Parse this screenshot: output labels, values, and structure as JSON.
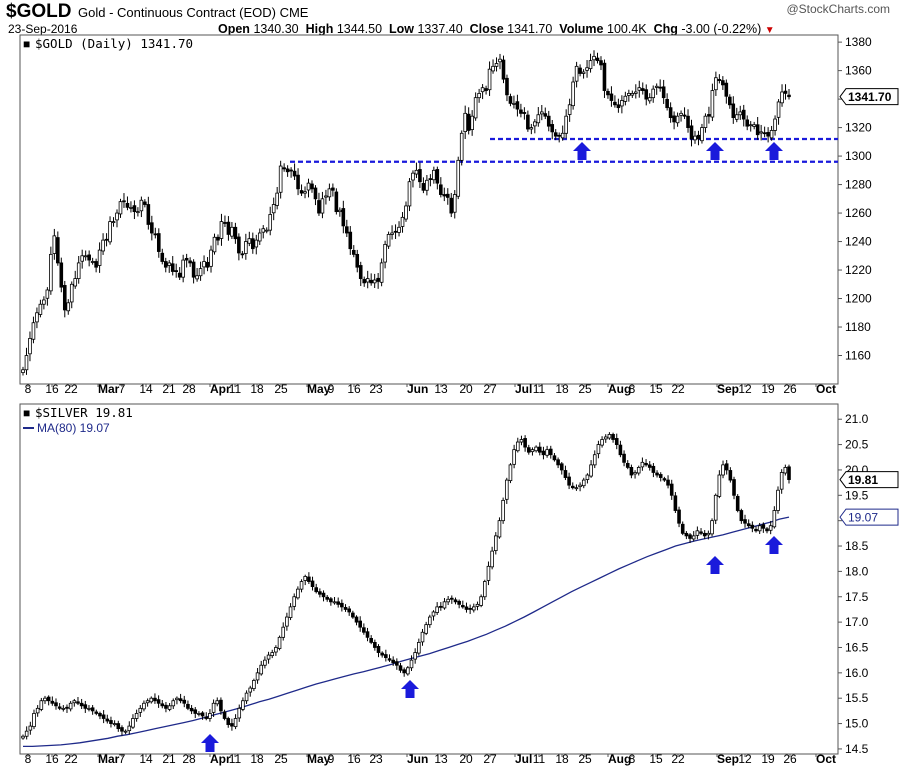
{
  "header": {
    "symbol": "$GOLD",
    "description": "Gold - Continuous Contract (EOD)",
    "exchange": "CME",
    "date": "23-Sep-2016",
    "open_label": "Open",
    "open": "1340.30",
    "high_label": "High",
    "high": "1344.50",
    "low_label": "Low",
    "low": "1337.40",
    "close_label": "Close",
    "close": "1341.70",
    "volume_label": "Volume",
    "volume": "100.4K",
    "chg_label": "Chg",
    "chg": "-3.00 (-0.22%)",
    "logo": "@StockCharts.com"
  },
  "chart_data": [
    {
      "type": "candlestick",
      "title": "$GOLD (Daily) 1341.70",
      "last_value": "1341.70",
      "ylim": [
        1140,
        1385
      ],
      "yticks": [
        1160,
        1180,
        1200,
        1220,
        1240,
        1260,
        1280,
        1300,
        1320,
        1340,
        1360,
        1380
      ],
      "support_lines": [
        1312,
        1296
      ],
      "arrows": [
        "2016-07-26",
        "2016-08-31",
        "2016-09-20"
      ],
      "grid": false,
      "x_tick_labels": [
        "8",
        "16",
        "22",
        "Mar",
        "7",
        "14",
        "21",
        "28",
        "Apr",
        "11",
        "18",
        "25",
        "May",
        "9",
        "16",
        "23",
        "Jun",
        "13",
        "20",
        "27",
        "Jul",
        "11",
        "18",
        "25",
        "Aug",
        "8",
        "15",
        "22",
        "Sep",
        "12",
        "19",
        "26",
        "Oct"
      ],
      "closes": [
        1150,
        1160,
        1172,
        1183,
        1190,
        1196,
        1199,
        1206,
        1231,
        1244,
        1225,
        1208,
        1192,
        1197,
        1210,
        1214,
        1225,
        1230,
        1230,
        1227,
        1226,
        1222,
        1234,
        1241,
        1241,
        1254,
        1254,
        1260,
        1268,
        1268,
        1264,
        1264,
        1261,
        1261,
        1269,
        1266,
        1252,
        1246,
        1245,
        1233,
        1226,
        1222,
        1225,
        1219,
        1219,
        1215,
        1227,
        1227,
        1225,
        1215,
        1216,
        1221,
        1226,
        1222,
        1234,
        1243,
        1241,
        1254,
        1253,
        1245,
        1250,
        1242,
        1232,
        1231,
        1240,
        1242,
        1235,
        1241,
        1246,
        1249,
        1248,
        1259,
        1266,
        1274,
        1293,
        1291,
        1289,
        1290,
        1286,
        1277,
        1274,
        1275,
        1281,
        1277,
        1270,
        1260,
        1270,
        1272,
        1277,
        1276,
        1261,
        1262,
        1251,
        1246,
        1235,
        1231,
        1222,
        1214,
        1211,
        1214,
        1211,
        1213,
        1212,
        1225,
        1238,
        1245,
        1246,
        1247,
        1250,
        1257,
        1265,
        1282,
        1288,
        1290,
        1282,
        1276,
        1283,
        1284,
        1290,
        1281,
        1273,
        1272,
        1271,
        1260,
        1273,
        1297,
        1316,
        1330,
        1318,
        1328,
        1341,
        1344,
        1348,
        1346,
        1361,
        1363,
        1365,
        1368,
        1354,
        1343,
        1337,
        1337,
        1333,
        1330,
        1330,
        1319,
        1320,
        1324,
        1329,
        1331,
        1328,
        1321,
        1317,
        1314,
        1314,
        1316,
        1328,
        1336,
        1352,
        1363,
        1358,
        1359,
        1362,
        1367,
        1370,
        1367,
        1364,
        1346,
        1343,
        1339,
        1336,
        1334,
        1339,
        1342,
        1344,
        1344,
        1345,
        1348,
        1346,
        1340,
        1341,
        1347,
        1349,
        1348,
        1341,
        1334,
        1327,
        1324,
        1328,
        1330,
        1328,
        1320,
        1312,
        1314,
        1312,
        1320,
        1328,
        1328,
        1346,
        1355,
        1353,
        1350,
        1342,
        1336,
        1327,
        1329,
        1331,
        1326,
        1321,
        1322,
        1322,
        1315,
        1317,
        1316,
        1314,
        1318,
        1326,
        1338,
        1345,
        1344,
        1341.7
      ]
    },
    {
      "type": "candlestick",
      "title": "$SILVER 19.81",
      "ma_label": "MA(80) 19.07",
      "last_value": "19.81",
      "ma_last": "19.07",
      "ylim": [
        14.4,
        21.3
      ],
      "yticks": [
        14.5,
        15.0,
        15.5,
        16.0,
        16.5,
        17.0,
        17.5,
        18.0,
        18.5,
        19.0,
        19.5,
        20.0,
        20.5,
        21.0
      ],
      "arrows": [
        "2016-04-01",
        "2016-06-01",
        "2016-08-31",
        "2016-09-20"
      ],
      "grid": false,
      "x_tick_labels": [
        "8",
        "16",
        "22",
        "Mar",
        "7",
        "14",
        "21",
        "28",
        "Apr",
        "11",
        "18",
        "25",
        "May",
        "9",
        "16",
        "23",
        "Jun",
        "13",
        "20",
        "27",
        "Jul",
        "11",
        "18",
        "25",
        "Aug",
        "8",
        "15",
        "22",
        "Sep",
        "12",
        "19",
        "26",
        "Oct"
      ],
      "closes": [
        14.75,
        14.85,
        14.95,
        15.2,
        15.3,
        15.45,
        15.5,
        15.45,
        15.4,
        15.35,
        15.3,
        15.3,
        15.3,
        15.4,
        15.45,
        15.4,
        15.35,
        15.3,
        15.3,
        15.25,
        15.2,
        15.15,
        15.1,
        15.05,
        15.0,
        15.0,
        14.9,
        14.85,
        14.85,
        14.95,
        15.1,
        15.2,
        15.3,
        15.4,
        15.45,
        15.5,
        15.45,
        15.4,
        15.35,
        15.3,
        15.35,
        15.45,
        15.5,
        15.45,
        15.4,
        15.3,
        15.25,
        15.2,
        15.2,
        15.15,
        15.1,
        15.2,
        15.4,
        15.45,
        15.25,
        15.1,
        14.98,
        14.95,
        15.1,
        15.3,
        15.45,
        15.6,
        15.7,
        15.85,
        16.0,
        16.15,
        16.25,
        16.35,
        16.4,
        16.5,
        16.7,
        16.9,
        17.1,
        17.3,
        17.5,
        17.65,
        17.8,
        17.9,
        17.8,
        17.7,
        17.6,
        17.55,
        17.5,
        17.45,
        17.4,
        17.4,
        17.35,
        17.3,
        17.25,
        17.2,
        17.1,
        17.0,
        16.9,
        16.8,
        16.7,
        16.6,
        16.5,
        16.4,
        16.35,
        16.3,
        16.25,
        16.2,
        16.15,
        16.05,
        16.0,
        16.1,
        16.25,
        16.4,
        16.6,
        16.8,
        16.95,
        17.1,
        17.2,
        17.3,
        17.3,
        17.4,
        17.45,
        17.45,
        17.4,
        17.35,
        17.3,
        17.25,
        17.25,
        17.3,
        17.35,
        17.5,
        17.8,
        18.1,
        18.4,
        18.7,
        19.0,
        19.4,
        19.8,
        20.1,
        20.4,
        20.55,
        20.6,
        20.45,
        20.35,
        20.4,
        20.45,
        20.35,
        20.3,
        20.4,
        20.3,
        20.2,
        20.1,
        20.0,
        19.85,
        19.7,
        19.65,
        19.65,
        19.7,
        19.8,
        19.9,
        20.1,
        20.3,
        20.5,
        20.6,
        20.65,
        20.7,
        20.6,
        20.5,
        20.3,
        20.15,
        20.05,
        19.9,
        19.95,
        20.05,
        20.15,
        20.1,
        20.05,
        19.95,
        19.9,
        19.85,
        19.8,
        19.7,
        19.5,
        19.2,
        18.95,
        18.75,
        18.7,
        18.65,
        18.7,
        18.8,
        18.75,
        18.7,
        18.75,
        19.0,
        19.5,
        19.9,
        20.1,
        20.0,
        19.8,
        19.5,
        19.2,
        19.0,
        18.95,
        18.9,
        18.85,
        18.8,
        18.9,
        18.85,
        18.8,
        18.9,
        19.2,
        19.6,
        19.95,
        20.05,
        19.81
      ],
      "ma_values": [
        14.55,
        14.55,
        14.56,
        14.57,
        14.58,
        14.6,
        14.62,
        14.65,
        14.68,
        14.71,
        14.75,
        14.78,
        14.82,
        14.86,
        14.9,
        14.94,
        14.98,
        15.02,
        15.06,
        15.11,
        15.16,
        15.21,
        15.26,
        15.31,
        15.37,
        15.43,
        15.48,
        15.54,
        15.6,
        15.66,
        15.72,
        15.78,
        15.83,
        15.88,
        15.93,
        15.98,
        16.02,
        16.07,
        16.12,
        16.17,
        16.23,
        16.28,
        16.33,
        16.38,
        16.44,
        16.5,
        16.56,
        16.62,
        16.69,
        16.76,
        16.84,
        16.92,
        17.01,
        17.1,
        17.2,
        17.3,
        17.4,
        17.5,
        17.6,
        17.69,
        17.78,
        17.87,
        17.96,
        18.05,
        18.13,
        18.21,
        18.29,
        18.36,
        18.43,
        18.5,
        18.55,
        18.6,
        18.64,
        18.68,
        18.72,
        18.77,
        18.82,
        18.87,
        18.92,
        18.97,
        19.03,
        19.07
      ]
    }
  ]
}
